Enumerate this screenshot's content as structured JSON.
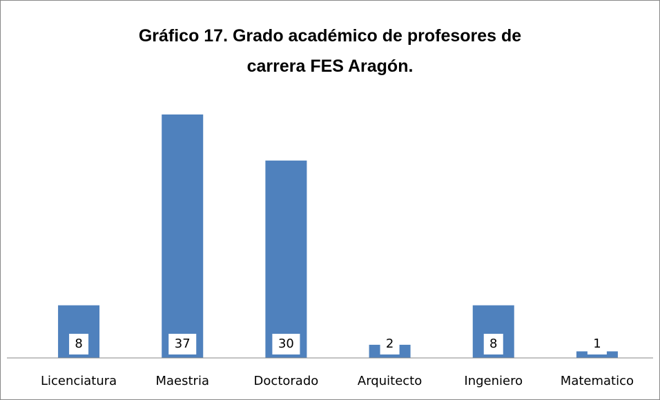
{
  "chart_data": {
    "type": "bar",
    "title": "Gráfico 17. Grado académico de profesores de carrera FES Aragón.",
    "categories": [
      "Licenciatura",
      "Maestria",
      "Doctorado",
      "Arquitecto",
      "Ingeniero",
      "Matematico"
    ],
    "values": [
      8,
      37,
      30,
      2,
      8,
      1
    ],
    "color": "#4f81bd"
  }
}
